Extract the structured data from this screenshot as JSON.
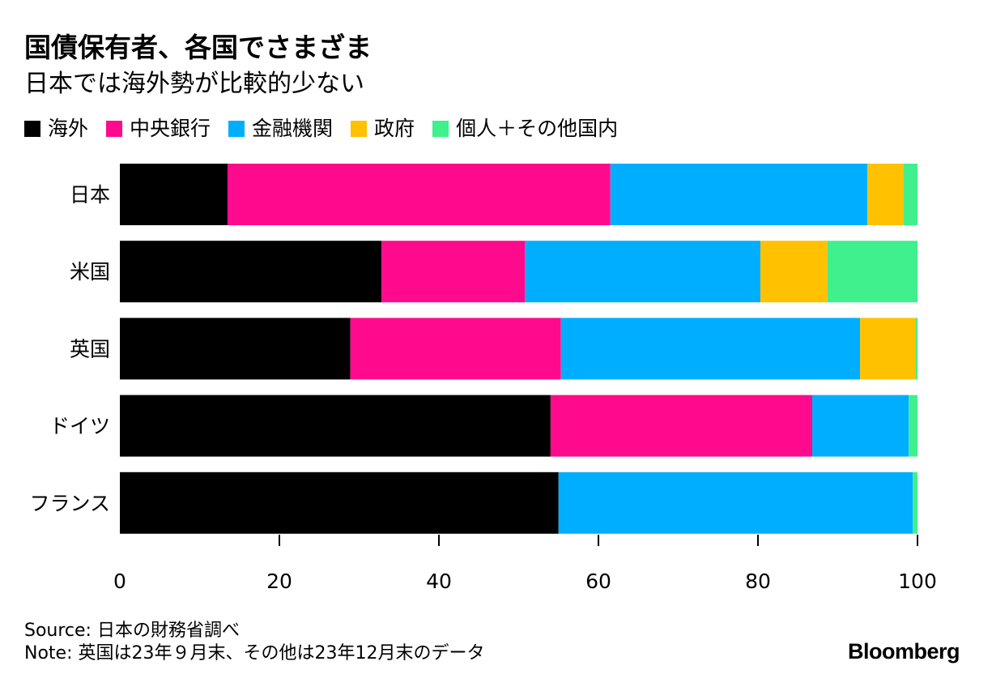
{
  "title": "国債保有者、各国でさまざま",
  "subtitle": "日本では海外勢が比較的少ない",
  "source": "Source: 日本の財務省調べ",
  "note": "Note: 英国は23年９月末、その他は23年12月末のデータ",
  "brand": "Bloomberg",
  "legend": [
    {
      "label": "海外",
      "color": "#000000"
    },
    {
      "label": "中央銀行",
      "color": "#ff0a8c"
    },
    {
      "label": "金融機関",
      "color": "#00aeff"
    },
    {
      "label": "政府",
      "color": "#ffc100"
    },
    {
      "label": "個人＋その他国内",
      "color": "#3ff08c"
    }
  ],
  "chart_data": {
    "type": "bar",
    "orientation": "horizontal",
    "stacked": true,
    "title": "国債保有者、各国でさまざま",
    "subtitle": "日本では海外勢が比較的少ない",
    "categories": [
      "日本",
      "米国",
      "英国",
      "ドイツ",
      "フランス"
    ],
    "series": [
      {
        "name": "海外",
        "color": "#000000",
        "values": [
          13.5,
          32.8,
          28.9,
          54.0,
          55.0
        ]
      },
      {
        "name": "中央銀行",
        "color": "#ff0a8c",
        "values": [
          48.0,
          18.0,
          26.4,
          32.8,
          0.0
        ]
      },
      {
        "name": "金融機関",
        "color": "#00aeff",
        "values": [
          32.2,
          29.5,
          37.5,
          12.1,
          44.4
        ]
      },
      {
        "name": "政府",
        "color": "#ffc100",
        "values": [
          4.5,
          8.4,
          7.0,
          0.0,
          0.0
        ]
      },
      {
        "name": "個人＋その他国内",
        "color": "#3ff08c",
        "values": [
          1.8,
          11.3,
          0.2,
          1.1,
          0.6
        ]
      }
    ],
    "xlim": [
      0,
      100
    ],
    "xticks": [
      0,
      20,
      40,
      60,
      80,
      100
    ],
    "xlabel": "",
    "ylabel": "",
    "grid": false,
    "legend_position": "top-left"
  }
}
